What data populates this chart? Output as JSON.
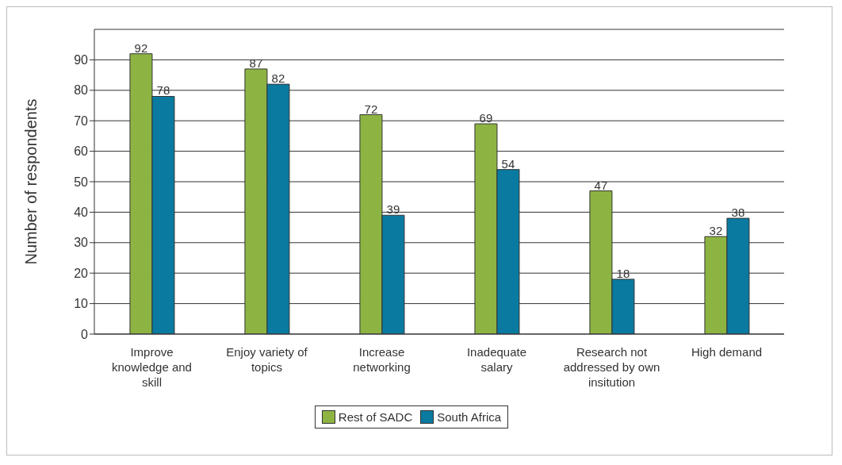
{
  "chart_data": {
    "type": "bar",
    "ylabel": "Number of respondents",
    "categories": [
      "Improve knowledge and skill",
      "Enjoy variety of topics",
      "Increase networking",
      "Inadequate salary",
      "Research not addressed by own insitution",
      "High demand"
    ],
    "series": [
      {
        "name": "Rest of SADC",
        "color": "#8db443",
        "values": [
          92,
          87,
          72,
          69,
          47,
          32
        ]
      },
      {
        "name": "South Africa",
        "color": "#0a7aa0",
        "values": [
          78,
          82,
          39,
          54,
          18,
          38
        ]
      }
    ],
    "ylim": [
      0,
      100
    ],
    "yticks": [
      0,
      10,
      20,
      30,
      40,
      50,
      60,
      70,
      80,
      90
    ],
    "grid": "y",
    "legend": "bottom",
    "data_labels": true
  }
}
